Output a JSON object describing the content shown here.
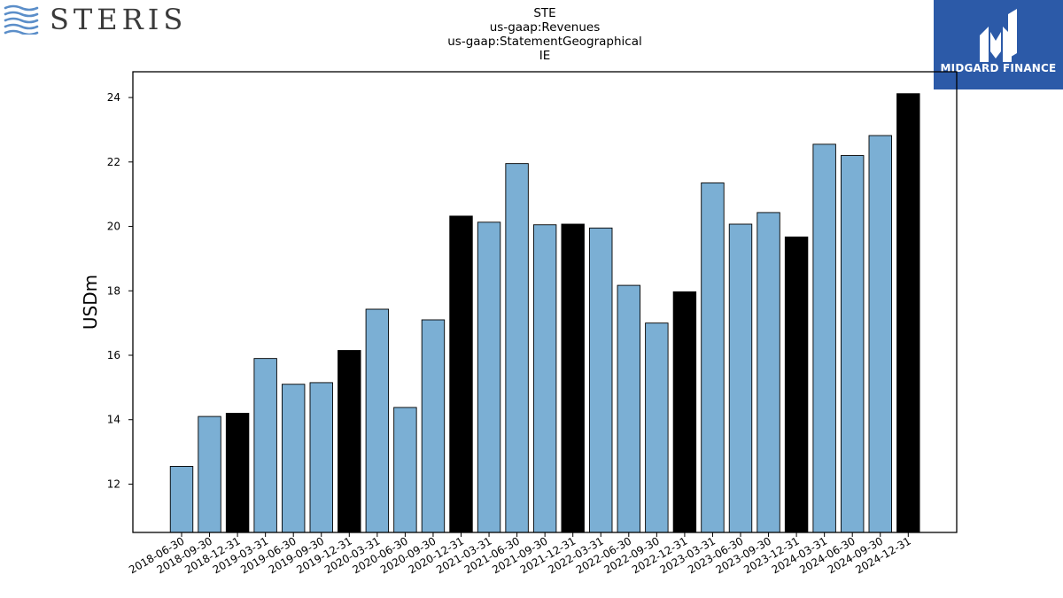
{
  "header": {
    "company_logo_text": "STERIS",
    "brand_logo_text": "MIDGARD FINANCE",
    "title_lines": [
      "STE",
      "us-gaap:Revenues",
      "us-gaap:StatementGeographical",
      "IE"
    ]
  },
  "colors": {
    "bar_default": "#7bafd4",
    "bar_year_end": "#000000",
    "bar_edge": "#000000",
    "brand_blue": "#2c5aa8"
  },
  "chart_data": {
    "type": "bar",
    "title": "STE\nus-gaap:Revenues\nus-gaap:StatementGeographical\nIE",
    "xlabel": "",
    "ylabel": "USDm",
    "ylim": [
      10.5,
      24.8
    ],
    "yticks": [
      12,
      14,
      16,
      18,
      20,
      22,
      24
    ],
    "grid": false,
    "categories": [
      "2018-06-30",
      "2018-09-30",
      "2018-12-31",
      "2019-03-31",
      "2019-06-30",
      "2019-09-30",
      "2019-12-31",
      "2020-03-31",
      "2020-06-30",
      "2020-09-30",
      "2020-12-31",
      "2021-03-31",
      "2021-06-30",
      "2021-09-30",
      "2021-12-31",
      "2022-03-31",
      "2022-06-30",
      "2022-09-30",
      "2022-12-31",
      "2023-03-31",
      "2023-06-30",
      "2023-09-30",
      "2023-12-31",
      "2024-03-31",
      "2024-06-30",
      "2024-09-30",
      "2024-12-31"
    ],
    "values": [
      12.55,
      14.1,
      14.2,
      15.9,
      15.1,
      15.15,
      16.15,
      17.43,
      14.38,
      17.1,
      20.32,
      20.13,
      21.95,
      20.05,
      20.07,
      19.95,
      18.17,
      17.0,
      17.97,
      21.35,
      20.07,
      20.43,
      19.67,
      22.55,
      22.2,
      22.82,
      24.12
    ],
    "highlight": [
      false,
      false,
      true,
      false,
      false,
      false,
      true,
      false,
      false,
      false,
      true,
      false,
      false,
      false,
      true,
      false,
      false,
      false,
      true,
      false,
      false,
      false,
      true,
      false,
      false,
      false,
      true
    ]
  }
}
